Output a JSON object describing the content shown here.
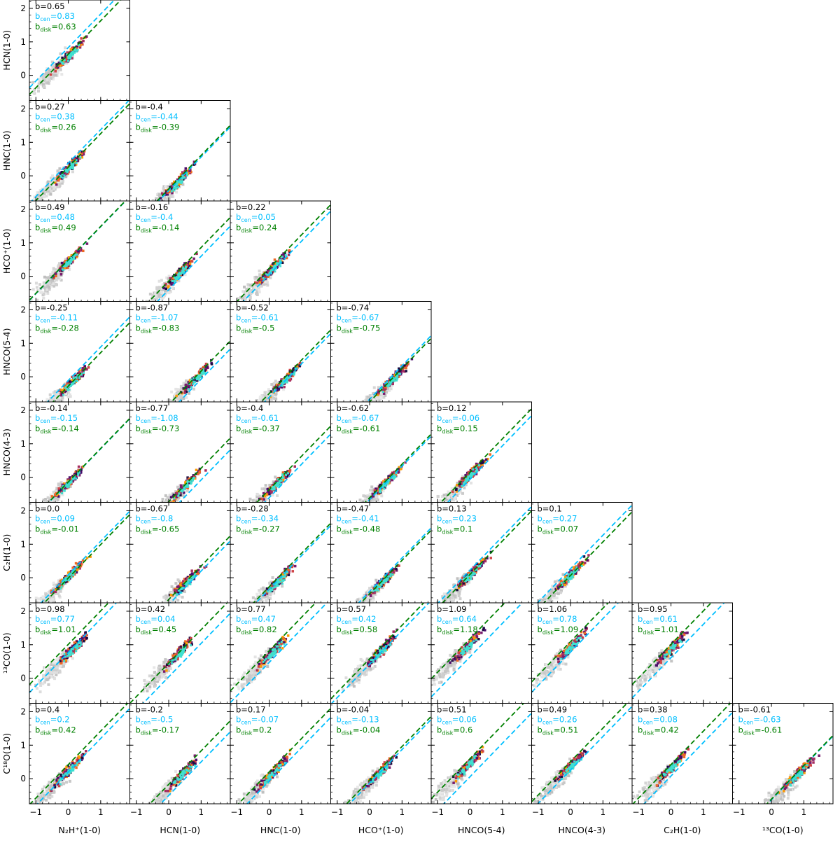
{
  "chart_data": {
    "type": "scatter",
    "x_labels": [
      "N₂H⁺(1-0)",
      "HCN(1-0)",
      "HNC(1-0)",
      "HCO⁺(1-0)",
      "HNCO(5-4)",
      "HNCO(4-3)",
      "C₂H(1-0)",
      "¹³CO(1-0)"
    ],
    "y_labels": [
      "HCN(1-0)",
      "HNC(1-0)",
      "HCO⁺(1-0)",
      "HNCO(5-4)",
      "HNCO(4-3)",
      "C₂H(1-0)",
      "¹³CO(1-0)",
      "C¹⁸O(1-0)"
    ],
    "xlim": [
      -1.2,
      1.9
    ],
    "ylim": [
      -0.75,
      2.25
    ],
    "x_ticks": [
      -1,
      0,
      1
    ],
    "y_ticks": [
      0,
      1,
      2
    ],
    "colors": {
      "all": "#000000",
      "cen": "#00bfff",
      "disk": "#008000",
      "background": "#c8c8c8",
      "cen_points": "#40e0d0"
    },
    "line_slope": 1,
    "panels": [
      {
        "row": 0,
        "col": 0,
        "b": "0.65",
        "b_cen": "0.83",
        "b_disk": "0.63",
        "cx": 0.0,
        "cy": 0.65
      },
      {
        "row": 1,
        "col": 0,
        "b": "0.27",
        "b_cen": "0.38",
        "b_disk": "0.26",
        "cx": 0.0,
        "cy": 0.3
      },
      {
        "row": 1,
        "col": 1,
        "b": "-0.4",
        "b_cen": "-0.44",
        "b_disk": "-0.39",
        "cx": 0.3,
        "cy": -0.1
      },
      {
        "row": 2,
        "col": 0,
        "b": "0.49",
        "b_cen": "0.48",
        "b_disk": "0.49",
        "cx": 0.0,
        "cy": 0.5
      },
      {
        "row": 2,
        "col": 1,
        "b": "-0.16",
        "b_cen": "-0.4",
        "b_disk": "-0.14",
        "cx": 0.3,
        "cy": 0.15
      },
      {
        "row": 2,
        "col": 2,
        "b": "0.22",
        "b_cen": "0.05",
        "b_disk": "0.24",
        "cx": 0.1,
        "cy": 0.3
      },
      {
        "row": 3,
        "col": 0,
        "b": "-0.25",
        "b_cen": "-0.11",
        "b_disk": "-0.28",
        "cx": 0.1,
        "cy": -0.1
      },
      {
        "row": 3,
        "col": 1,
        "b": "-0.87",
        "b_cen": "-1.07",
        "b_disk": "-0.83",
        "cx": 0.8,
        "cy": 0.0
      },
      {
        "row": 3,
        "col": 2,
        "b": "-0.52",
        "b_cen": "-0.61",
        "b_disk": "-0.5",
        "cx": 0.5,
        "cy": 0.0
      },
      {
        "row": 3,
        "col": 3,
        "b": "-0.74",
        "b_cen": "-0.67",
        "b_disk": "-0.75",
        "cx": 0.7,
        "cy": 0.0
      },
      {
        "row": 4,
        "col": 0,
        "b": "-0.14",
        "b_cen": "-0.15",
        "b_disk": "-0.14",
        "cx": 0.0,
        "cy": -0.1
      },
      {
        "row": 4,
        "col": 1,
        "b": "-0.77",
        "b_cen": "-1.08",
        "b_disk": "-0.73",
        "cx": 0.5,
        "cy": -0.2
      },
      {
        "row": 4,
        "col": 2,
        "b": "-0.4",
        "b_cen": "-0.61",
        "b_disk": "-0.37",
        "cx": 0.2,
        "cy": -0.15
      },
      {
        "row": 4,
        "col": 3,
        "b": "-0.62",
        "b_cen": "-0.67",
        "b_disk": "-0.61",
        "cx": 0.5,
        "cy": -0.1
      },
      {
        "row": 4,
        "col": 4,
        "b": "0.12",
        "b_cen": "-0.06",
        "b_disk": "0.15",
        "cx": 0.0,
        "cy": 0.15
      },
      {
        "row": 5,
        "col": 0,
        "b": "0.0",
        "b_cen": "0.09",
        "b_disk": "-0.01",
        "cx": 0.0,
        "cy": 0.1
      },
      {
        "row": 5,
        "col": 1,
        "b": "-0.67",
        "b_cen": "-0.8",
        "b_disk": "-0.65",
        "cx": 0.5,
        "cy": -0.1
      },
      {
        "row": 5,
        "col": 2,
        "b": "-0.28",
        "b_cen": "-0.34",
        "b_disk": "-0.27",
        "cx": 0.3,
        "cy": 0.0
      },
      {
        "row": 5,
        "col": 3,
        "b": "-0.47",
        "b_cen": "-0.41",
        "b_disk": "-0.48",
        "cx": 0.4,
        "cy": -0.05
      },
      {
        "row": 5,
        "col": 4,
        "b": "0.13",
        "b_cen": "0.23",
        "b_disk": "0.1",
        "cx": 0.0,
        "cy": 0.15
      },
      {
        "row": 5,
        "col": 5,
        "b": "0.1",
        "b_cen": "0.27",
        "b_disk": "0.07",
        "cx": 0.0,
        "cy": 0.15
      },
      {
        "row": 6,
        "col": 0,
        "b": "0.98",
        "b_cen": "0.77",
        "b_disk": "1.01",
        "cx": 0.1,
        "cy": 0.9
      },
      {
        "row": 6,
        "col": 1,
        "b": "0.42",
        "b_cen": "0.04",
        "b_disk": "0.45",
        "cx": 0.3,
        "cy": 0.8
      },
      {
        "row": 6,
        "col": 2,
        "b": "0.77",
        "b_cen": "0.47",
        "b_disk": "0.82",
        "cx": 0.1,
        "cy": 0.85
      },
      {
        "row": 6,
        "col": 3,
        "b": "0.57",
        "b_cen": "0.42",
        "b_disk": "0.58",
        "cx": 0.3,
        "cy": 0.85
      },
      {
        "row": 6,
        "col": 4,
        "b": "1.09",
        "b_cen": "0.64",
        "b_disk": "1.18",
        "cx": -0.1,
        "cy": 1.0
      },
      {
        "row": 6,
        "col": 5,
        "b": "1.06",
        "b_cen": "0.78",
        "b_disk": "1.09",
        "cx": 0.0,
        "cy": 1.0
      },
      {
        "row": 6,
        "col": 6,
        "b": "0.95",
        "b_cen": "0.61",
        "b_disk": "1.01",
        "cx": 0.0,
        "cy": 0.95
      },
      {
        "row": 7,
        "col": 0,
        "b": "0.4",
        "b_cen": "0.2",
        "b_disk": "0.42",
        "cx": 0.0,
        "cy": 0.3
      },
      {
        "row": 7,
        "col": 1,
        "b": "-0.2",
        "b_cen": "-0.5",
        "b_disk": "-0.17",
        "cx": 0.4,
        "cy": 0.2
      },
      {
        "row": 7,
        "col": 2,
        "b": "0.17",
        "b_cen": "-0.07",
        "b_disk": "0.2",
        "cx": 0.1,
        "cy": 0.25
      },
      {
        "row": 7,
        "col": 3,
        "b": "-0.04",
        "b_cen": "-0.13",
        "b_disk": "-0.04",
        "cx": 0.3,
        "cy": 0.25
      },
      {
        "row": 7,
        "col": 4,
        "b": "0.51",
        "b_cen": "0.06",
        "b_disk": "0.6",
        "cx": -0.1,
        "cy": 0.45
      },
      {
        "row": 7,
        "col": 5,
        "b": "0.49",
        "b_cen": "0.26",
        "b_disk": "0.51",
        "cx": 0.0,
        "cy": 0.45
      },
      {
        "row": 7,
        "col": 6,
        "b": "0.38",
        "b_cen": "0.08",
        "b_disk": "0.42",
        "cx": 0.0,
        "cy": 0.4
      },
      {
        "row": 7,
        "col": 7,
        "b": "-0.61",
        "b_cen": "-0.63",
        "b_disk": "-0.61",
        "cx": 0.8,
        "cy": 0.2
      }
    ]
  }
}
